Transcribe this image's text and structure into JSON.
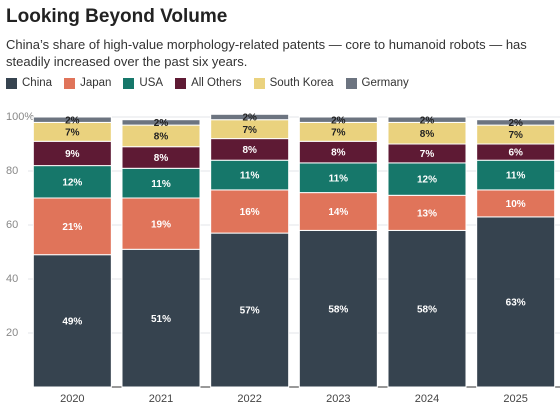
{
  "chart_data": {
    "type": "stacked_bar",
    "title": "Looking Beyond Volume",
    "subtitle": "China’s share of high-value morphology-related patents — core to humanoid robots — has steadily increased over the past six years.",
    "categories": [
      "2020",
      "2021",
      "2022",
      "2023",
      "2024",
      "2025"
    ],
    "series": [
      {
        "name": "China",
        "color": "#36434f",
        "values": [
          49,
          51,
          57,
          58,
          58,
          63
        ],
        "value_labels": [
          "49%",
          "51%",
          "57%",
          "58%",
          "58%",
          "63%"
        ]
      },
      {
        "name": "Japan",
        "color": "#e0745a",
        "values": [
          21,
          19,
          16,
          14,
          13,
          10
        ],
        "value_labels": [
          "21%",
          "19%",
          "16%",
          "14%",
          "13%",
          "10%"
        ]
      },
      {
        "name": "USA",
        "color": "#16776a",
        "values": [
          12,
          11,
          11,
          11,
          12,
          11
        ],
        "value_labels": [
          "12%",
          "11%",
          "11%",
          "11%",
          "12%",
          "11%"
        ]
      },
      {
        "name": "All Others",
        "color": "#5e1a34",
        "values": [
          9,
          8,
          8,
          8,
          7,
          6
        ],
        "value_labels": [
          "9%",
          "8%",
          "8%",
          "8%",
          "7%",
          "6%"
        ]
      },
      {
        "name": "South Korea",
        "color": "#ead27e",
        "values": [
          7,
          8,
          7,
          7,
          8,
          7
        ],
        "value_labels": [
          "7%",
          "8%",
          "7%",
          "7%",
          "8%",
          "7%"
        ]
      },
      {
        "name": "Germany",
        "color": "#6c7480",
        "values": [
          2,
          2,
          2,
          2,
          2,
          2
        ],
        "value_labels": [
          "2%",
          "2%",
          "2%",
          "2%",
          "2%",
          "2%"
        ]
      }
    ],
    "ylim": [
      0,
      100
    ],
    "yticks": [
      20,
      40,
      60,
      80,
      {
        "value": 100,
        "label": "100%"
      }
    ],
    "grid": true
  }
}
